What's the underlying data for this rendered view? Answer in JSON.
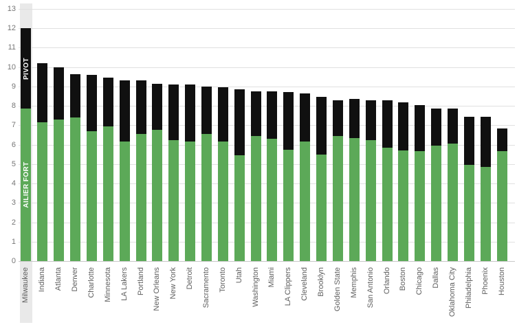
{
  "chart_data": {
    "type": "bar",
    "stacked": true,
    "title": "",
    "xlabel": "",
    "ylabel": "",
    "ylim": [
      0,
      13
    ],
    "ytick_step": 1,
    "grid": true,
    "legend_position": "none",
    "highlighted_category": "Milwaukee",
    "categories": [
      "Milwaukee",
      "Indiana",
      "Atlanta",
      "Denver",
      "Charlotte",
      "Minnesota",
      "LA Lakers",
      "Portland",
      "New Orleans",
      "New York",
      "Detroit",
      "Sacramento",
      "Toronto",
      "Utah",
      "Washington",
      "Miami",
      "LA Clippers",
      "Cleveland",
      "Brooklyn",
      "Golden State",
      "Memphis",
      "San Antonio",
      "Orlando",
      "Boston",
      "Chicago",
      "Dallas",
      "Oklahoma City",
      "Philadelphia",
      "Phoenix",
      "Houston"
    ],
    "series": [
      {
        "name": "AILIER FORT",
        "color": "#5ca958",
        "values": [
          7.85,
          7.15,
          7.3,
          7.4,
          6.7,
          6.95,
          6.15,
          6.55,
          6.75,
          6.25,
          6.15,
          6.55,
          6.15,
          5.45,
          6.45,
          6.3,
          5.75,
          6.15,
          5.5,
          6.45,
          6.35,
          6.25,
          5.85,
          5.7,
          5.65,
          5.95,
          6.05,
          4.95,
          4.85,
          5.65
        ]
      },
      {
        "name": "PIVOT",
        "color": "#101010",
        "values": [
          4.15,
          3.05,
          2.7,
          2.25,
          2.9,
          2.5,
          3.15,
          2.75,
          2.4,
          2.85,
          2.95,
          2.45,
          2.8,
          3.4,
          2.3,
          2.45,
          2.95,
          2.5,
          2.95,
          1.85,
          2.0,
          2.05,
          2.45,
          2.5,
          2.4,
          1.9,
          1.8,
          2.5,
          2.6,
          1.2
        ]
      }
    ],
    "bar_segment_labels": {
      "top_segment": "PIVOT",
      "bottom_segment": "AILIER FORT"
    },
    "ytick_labels": [
      "0",
      "1",
      "2",
      "3",
      "4",
      "5",
      "6",
      "7",
      "8",
      "9",
      "10",
      "11",
      "12",
      "13"
    ]
  },
  "colors": {
    "ailier_fort_green": "#5ca958",
    "pivot_black": "#101010",
    "highlight_band": "#e9e9e9",
    "grid_line": "#e0e0e0",
    "axis_line": "#c7c7c7",
    "y_label_text": "#757575",
    "x_label_text": "#5f5f5f",
    "segment_label_text": "#ffffff",
    "background": "#ffffff"
  }
}
